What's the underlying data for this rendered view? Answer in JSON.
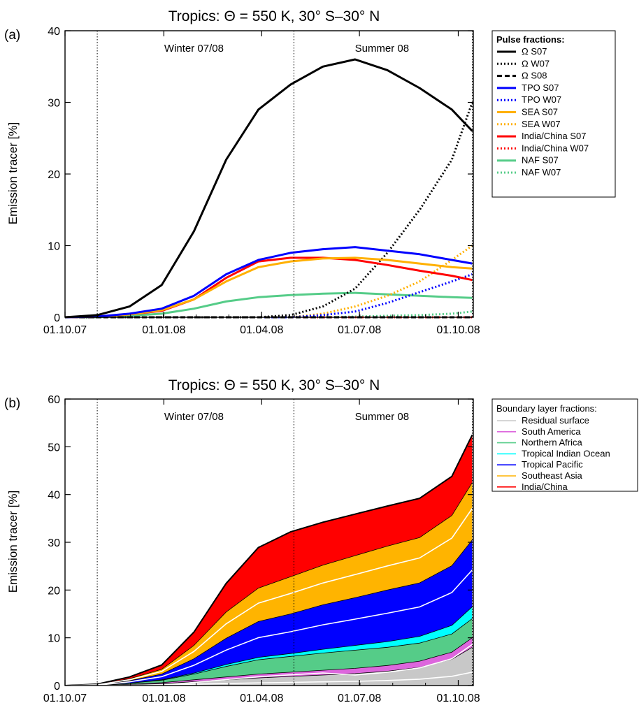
{
  "chart_data": [
    {
      "type": "line",
      "panel_label": "(a)",
      "title": "Tropics: Θ = 550 K, 30° S–30° N",
      "ylabel": "Emission tracer [%]",
      "xlabel": "",
      "ylim": [
        0,
        40
      ],
      "yticks": [
        0,
        10,
        20,
        30,
        40
      ],
      "xlim": [
        0,
        380
      ],
      "xticks": [
        0,
        92,
        183,
        274,
        366
      ],
      "xtick_labels": [
        "01.10.07",
        "01.01.08",
        "01.04.08",
        "01.07.08",
        "01.10.08"
      ],
      "vlines": [
        30,
        213,
        379
      ],
      "annotations": [
        {
          "text": "Winter 07/08",
          "x": 120
        },
        {
          "text": "Summer 08",
          "x": 295
        }
      ],
      "legend_title": "Pulse fractions:",
      "legend_position": "outside-right",
      "x": [
        0,
        30,
        60,
        90,
        120,
        150,
        180,
        210,
        240,
        270,
        300,
        330,
        360,
        379
      ],
      "series": [
        {
          "name": "Ω S07",
          "color": "#000000",
          "style": "solid",
          "y": [
            0,
            0.3,
            1.5,
            4.5,
            12,
            22,
            29,
            32.5,
            35,
            36,
            34.5,
            32,
            29,
            26
          ]
        },
        {
          "name": "Ω W07",
          "color": "#000000",
          "style": "dotted",
          "y": [
            0,
            0,
            0,
            0,
            0,
            0,
            0,
            0.3,
            1.5,
            4,
            9,
            15,
            22,
            30
          ]
        },
        {
          "name": "Ω S08",
          "color": "#000000",
          "style": "dashed",
          "y": [
            0,
            0,
            0,
            0,
            0,
            0,
            0,
            0,
            0,
            0,
            0,
            0,
            0,
            0
          ]
        },
        {
          "name": "TPO S07",
          "color": "#0000ff",
          "style": "solid",
          "y": [
            0,
            0.1,
            0.5,
            1.2,
            3,
            6,
            8,
            9,
            9.5,
            9.8,
            9.3,
            8.8,
            8,
            7.5
          ]
        },
        {
          "name": "TPO W07",
          "color": "#0000ff",
          "style": "dotted",
          "y": [
            0,
            0,
            0,
            0,
            0,
            0,
            0,
            0,
            0.3,
            0.8,
            2,
            3.5,
            5,
            6
          ]
        },
        {
          "name": "SEA S07",
          "color": "#ffb000",
          "style": "solid",
          "y": [
            0,
            0.1,
            0.4,
            1,
            2.5,
            5,
            7,
            7.8,
            8.2,
            8.3,
            8,
            7.5,
            7,
            6.8
          ]
        },
        {
          "name": "SEA W07",
          "color": "#ffb000",
          "style": "dotted",
          "y": [
            0,
            0,
            0,
            0,
            0,
            0,
            0,
            0,
            0.5,
            1.5,
            3,
            5,
            8,
            10
          ]
        },
        {
          "name": "India/China S07",
          "color": "#ff0000",
          "style": "solid",
          "y": [
            0,
            0.1,
            0.4,
            0.9,
            2.5,
            5.5,
            7.8,
            8.3,
            8.3,
            8,
            7.3,
            6.5,
            5.8,
            5.2
          ]
        },
        {
          "name": "India/China W07",
          "color": "#ff0000",
          "style": "dotted",
          "y": [
            0,
            0,
            0,
            0,
            0,
            0,
            0,
            0,
            0,
            0,
            0,
            0,
            0,
            0
          ]
        },
        {
          "name": "NAF S07",
          "color": "#55cc88",
          "style": "solid",
          "y": [
            0,
            0,
            0.2,
            0.5,
            1.2,
            2.2,
            2.8,
            3.1,
            3.3,
            3.4,
            3.2,
            3,
            2.8,
            2.7
          ]
        },
        {
          "name": "NAF W07",
          "color": "#55cc88",
          "style": "dotted",
          "y": [
            0,
            0,
            0,
            0,
            0,
            0,
            0,
            0,
            0,
            0.1,
            0.2,
            0.3,
            0.5,
            0.8
          ]
        }
      ]
    },
    {
      "type": "area",
      "stacked": true,
      "panel_label": "(b)",
      "title": "Tropics: Θ = 550 K, 30° S–30° N",
      "ylabel": "Emission tracer [%]",
      "xlabel": "",
      "ylim": [
        0,
        60
      ],
      "yticks": [
        0,
        10,
        20,
        30,
        40,
        50,
        60
      ],
      "xlim": [
        0,
        380
      ],
      "xticks": [
        0,
        92,
        183,
        274,
        366
      ],
      "xtick_labels": [
        "01.10.07",
        "01.01.08",
        "01.04.08",
        "01.07.08",
        "01.10.08"
      ],
      "vlines": [
        30,
        213,
        379
      ],
      "annotations": [
        {
          "text": "Winter 07/08",
          "x": 120
        },
        {
          "text": "Summer 08",
          "x": 295
        }
      ],
      "legend_title": "Boundary layer fractions:",
      "legend_position": "outside-right",
      "x": [
        0,
        30,
        60,
        90,
        120,
        150,
        180,
        210,
        240,
        270,
        300,
        330,
        360,
        379
      ],
      "series": [
        {
          "name": "Residual surface",
          "color": "#c8c8c8",
          "y": [
            0,
            0,
            0.2,
            0.4,
            0.8,
            1.2,
            1.6,
            1.9,
            2.2,
            2.5,
            3,
            3.8,
            5.5,
            8
          ]
        },
        {
          "name": "South America",
          "color": "#dd66dd",
          "y": [
            0,
            0,
            0.1,
            0.2,
            0.4,
            0.6,
            0.8,
            0.9,
            1,
            1.1,
            1.2,
            1.3,
            1.5,
            2
          ]
        },
        {
          "name": "Northern Africa",
          "color": "#55cc88",
          "y": [
            0,
            0,
            0.2,
            0.5,
            1.2,
            2.2,
            3,
            3.3,
            3.6,
            3.8,
            3.8,
            3.8,
            3.8,
            4
          ]
        },
        {
          "name": "Tropical Indian Ocean",
          "color": "#00ffff",
          "y": [
            0,
            0,
            0,
            0.1,
            0.2,
            0.4,
            0.5,
            0.6,
            0.8,
            1,
            1.2,
            1.4,
            1.8,
            2.5
          ]
        },
        {
          "name": "Tropical Pacific",
          "color": "#0000ff",
          "y": [
            0,
            0.1,
            0.5,
            1.2,
            3,
            5.5,
            7.5,
            8.3,
            9.3,
            10,
            10.8,
            11.2,
            12.5,
            14
          ]
        },
        {
          "name": "Southeast Asia",
          "color": "#ffb400",
          "y": [
            0,
            0.1,
            0.4,
            1,
            2.8,
            5.5,
            7,
            7.8,
            8.3,
            8.8,
            9.2,
            9.5,
            10.5,
            12
          ]
        },
        {
          "name": "India/China",
          "color": "#ff0000",
          "y": [
            0,
            0.1,
            0.4,
            0.9,
            2.8,
            6,
            8.5,
            9.4,
            9,
            8.7,
            8.4,
            8.2,
            8.2,
            10
          ]
        }
      ]
    }
  ]
}
